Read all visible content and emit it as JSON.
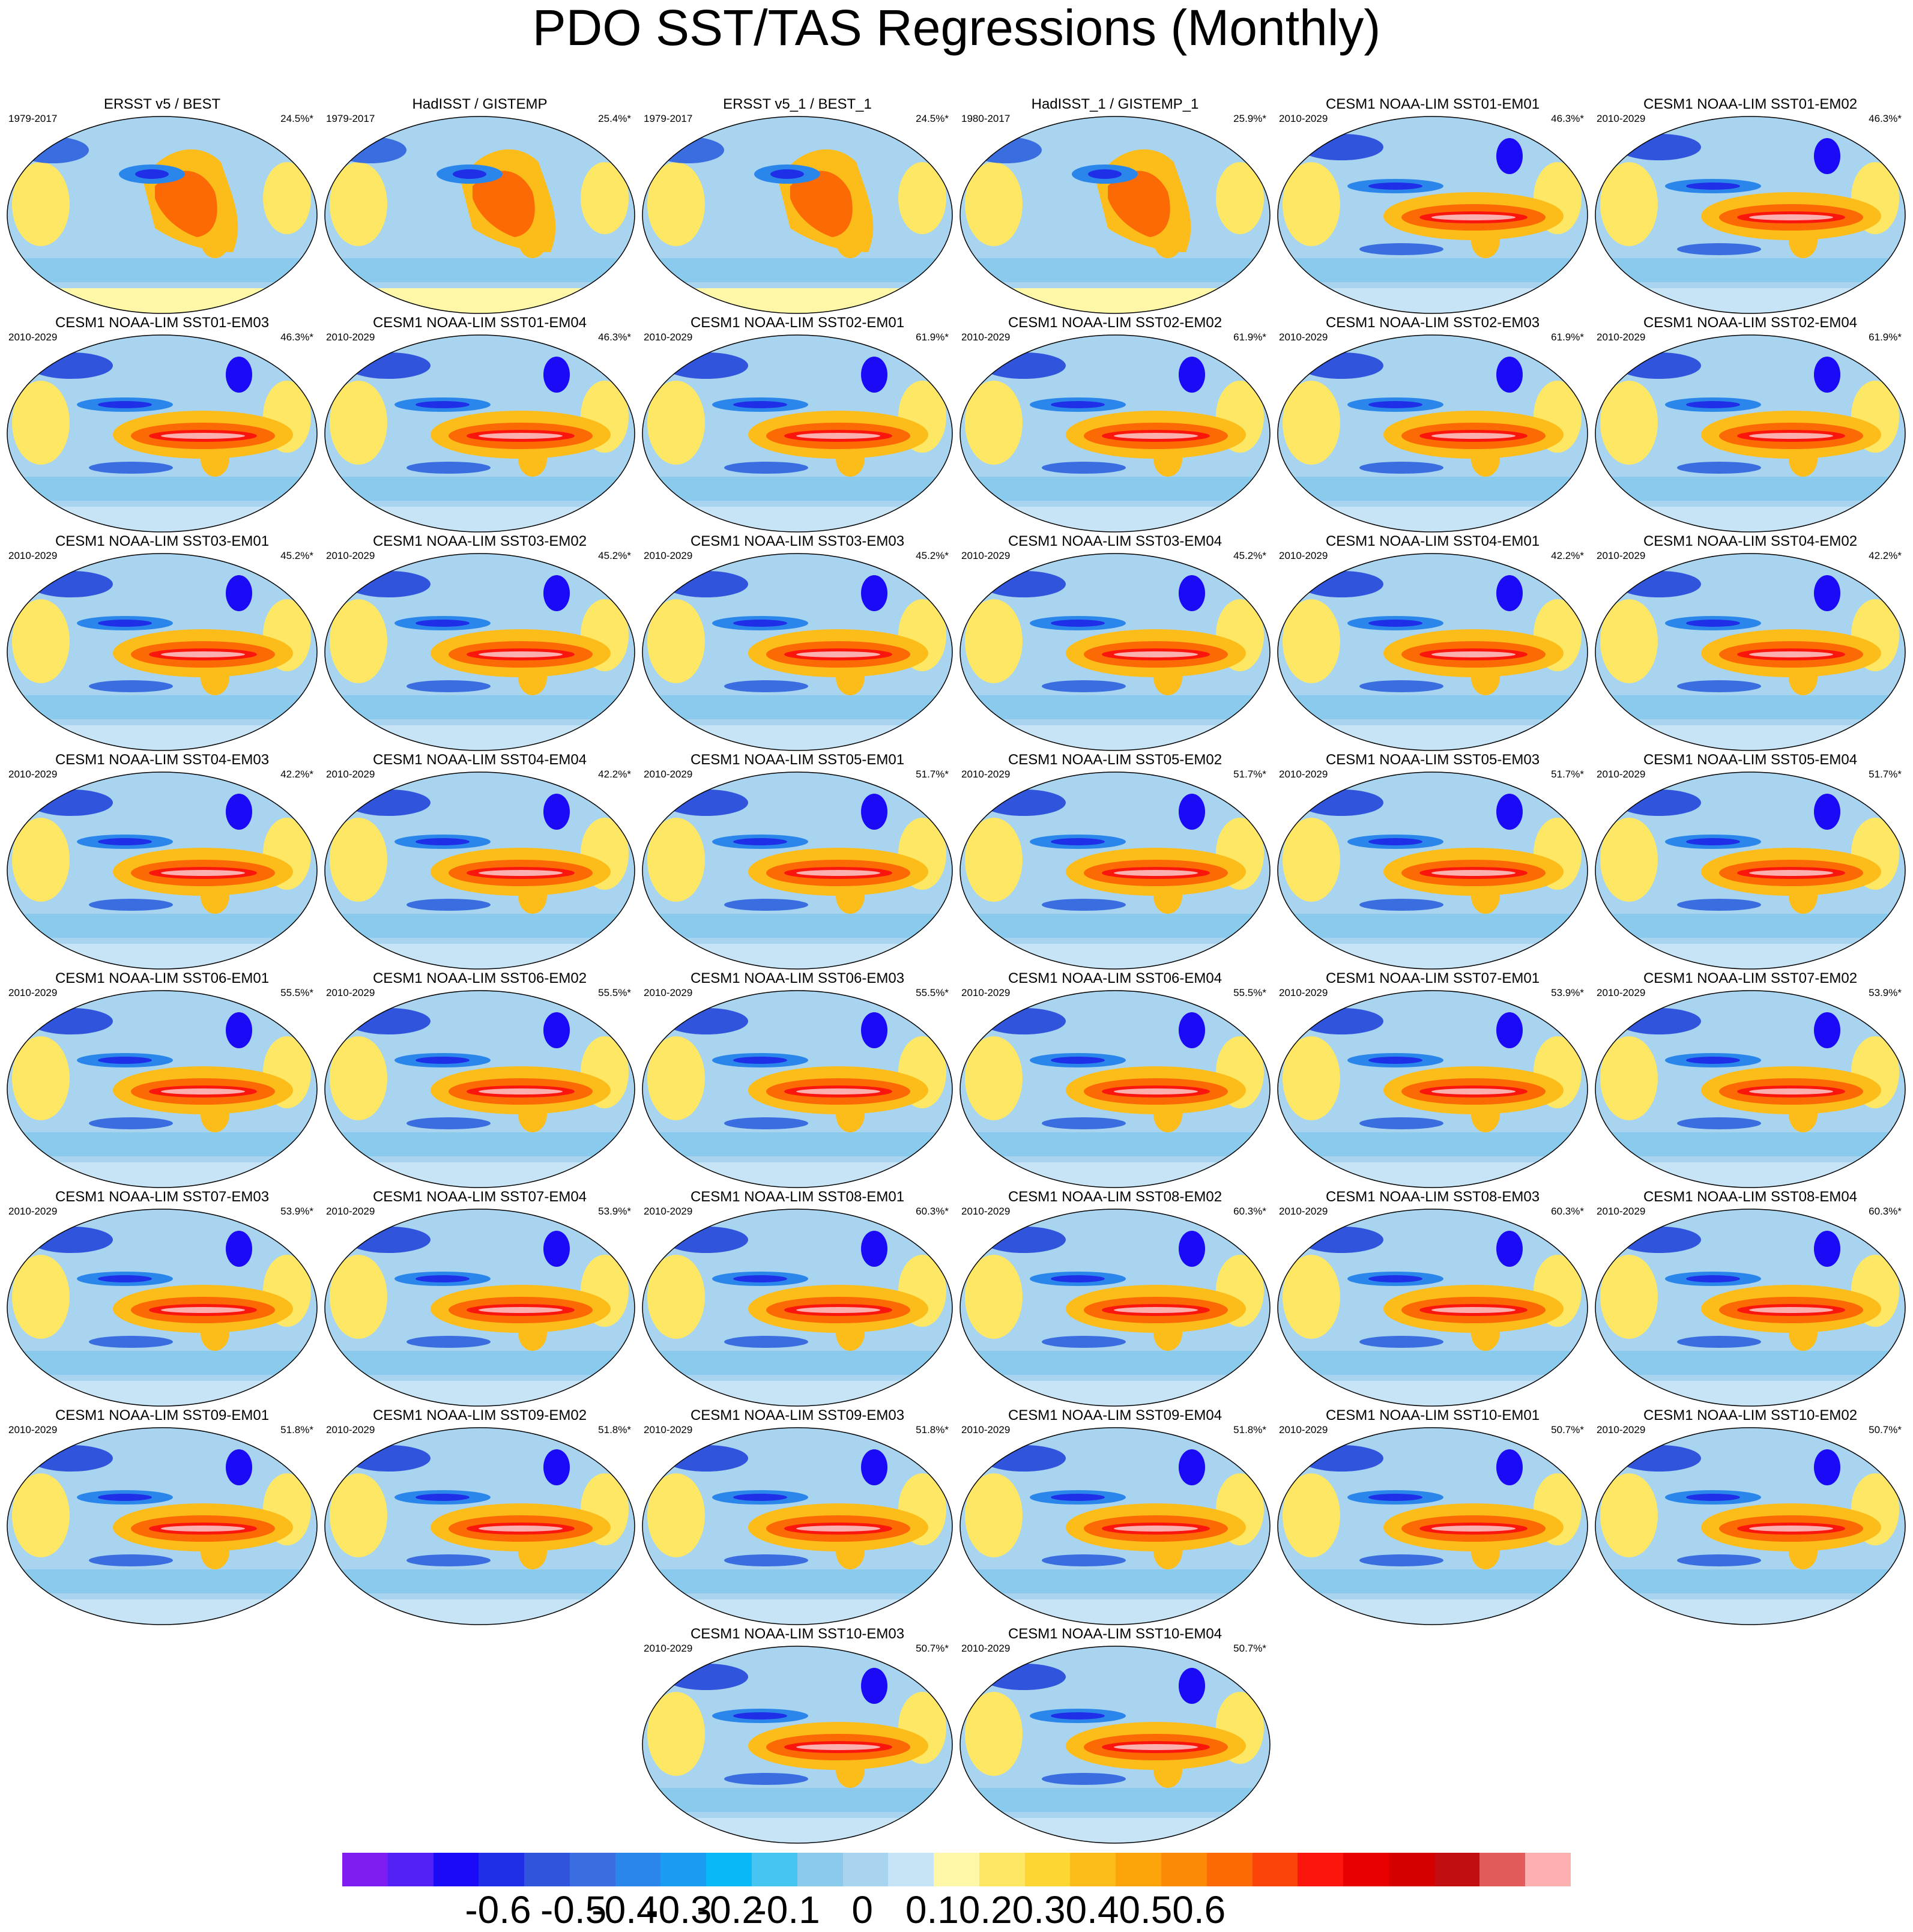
{
  "title": "PDO SST/TAS Regressions (Monthly)",
  "chart_data": {
    "type": "heatmap",
    "title": "PDO SST/TAS Regressions (Monthly)",
    "panels": [
      {
        "title": "ERSST v5 / BEST",
        "years": "1979-2017",
        "pct": "24.5%*",
        "style": "obs"
      },
      {
        "title": "HadISST / GISTEMP",
        "years": "1979-2017",
        "pct": "25.4%*",
        "style": "obs"
      },
      {
        "title": "ERSST v5_1 / BEST_1",
        "years": "1979-2017",
        "pct": "24.5%*",
        "style": "obs"
      },
      {
        "title": "HadISST_1 / GISTEMP_1",
        "years": "1980-2017",
        "pct": "25.9%*",
        "style": "obs"
      },
      {
        "title": "CESM1 NOAA-LIM SST01-EM01",
        "years": "2010-2029",
        "pct": "46.3%*",
        "style": "model"
      },
      {
        "title": "CESM1 NOAA-LIM SST01-EM02",
        "years": "2010-2029",
        "pct": "46.3%*",
        "style": "model"
      },
      {
        "title": "CESM1 NOAA-LIM SST01-EM03",
        "years": "2010-2029",
        "pct": "46.3%*",
        "style": "model"
      },
      {
        "title": "CESM1 NOAA-LIM SST01-EM04",
        "years": "2010-2029",
        "pct": "46.3%*",
        "style": "model"
      },
      {
        "title": "CESM1 NOAA-LIM SST02-EM01",
        "years": "2010-2029",
        "pct": "61.9%*",
        "style": "model"
      },
      {
        "title": "CESM1 NOAA-LIM SST02-EM02",
        "years": "2010-2029",
        "pct": "61.9%*",
        "style": "model"
      },
      {
        "title": "CESM1 NOAA-LIM SST02-EM03",
        "years": "2010-2029",
        "pct": "61.9%*",
        "style": "model"
      },
      {
        "title": "CESM1 NOAA-LIM SST02-EM04",
        "years": "2010-2029",
        "pct": "61.9%*",
        "style": "model"
      },
      {
        "title": "CESM1 NOAA-LIM SST03-EM01",
        "years": "2010-2029",
        "pct": "45.2%*",
        "style": "model"
      },
      {
        "title": "CESM1 NOAA-LIM SST03-EM02",
        "years": "2010-2029",
        "pct": "45.2%*",
        "style": "model"
      },
      {
        "title": "CESM1 NOAA-LIM SST03-EM03",
        "years": "2010-2029",
        "pct": "45.2%*",
        "style": "model"
      },
      {
        "title": "CESM1 NOAA-LIM SST03-EM04",
        "years": "2010-2029",
        "pct": "45.2%*",
        "style": "model"
      },
      {
        "title": "CESM1 NOAA-LIM SST04-EM01",
        "years": "2010-2029",
        "pct": "42.2%*",
        "style": "model"
      },
      {
        "title": "CESM1 NOAA-LIM SST04-EM02",
        "years": "2010-2029",
        "pct": "42.2%*",
        "style": "model"
      },
      {
        "title": "CESM1 NOAA-LIM SST04-EM03",
        "years": "2010-2029",
        "pct": "42.2%*",
        "style": "model"
      },
      {
        "title": "CESM1 NOAA-LIM SST04-EM04",
        "years": "2010-2029",
        "pct": "42.2%*",
        "style": "model"
      },
      {
        "title": "CESM1 NOAA-LIM SST05-EM01",
        "years": "2010-2029",
        "pct": "51.7%*",
        "style": "model"
      },
      {
        "title": "CESM1 NOAA-LIM SST05-EM02",
        "years": "2010-2029",
        "pct": "51.7%*",
        "style": "model"
      },
      {
        "title": "CESM1 NOAA-LIM SST05-EM03",
        "years": "2010-2029",
        "pct": "51.7%*",
        "style": "model"
      },
      {
        "title": "CESM1 NOAA-LIM SST05-EM04",
        "years": "2010-2029",
        "pct": "51.7%*",
        "style": "model"
      },
      {
        "title": "CESM1 NOAA-LIM SST06-EM01",
        "years": "2010-2029",
        "pct": "55.5%*",
        "style": "model"
      },
      {
        "title": "CESM1 NOAA-LIM SST06-EM02",
        "years": "2010-2029",
        "pct": "55.5%*",
        "style": "model"
      },
      {
        "title": "CESM1 NOAA-LIM SST06-EM03",
        "years": "2010-2029",
        "pct": "55.5%*",
        "style": "model"
      },
      {
        "title": "CESM1 NOAA-LIM SST06-EM04",
        "years": "2010-2029",
        "pct": "55.5%*",
        "style": "model"
      },
      {
        "title": "CESM1 NOAA-LIM SST07-EM01",
        "years": "2010-2029",
        "pct": "53.9%*",
        "style": "model"
      },
      {
        "title": "CESM1 NOAA-LIM SST07-EM02",
        "years": "2010-2029",
        "pct": "53.9%*",
        "style": "model"
      },
      {
        "title": "CESM1 NOAA-LIM SST07-EM03",
        "years": "2010-2029",
        "pct": "53.9%*",
        "style": "model"
      },
      {
        "title": "CESM1 NOAA-LIM SST07-EM04",
        "years": "2010-2029",
        "pct": "53.9%*",
        "style": "model"
      },
      {
        "title": "CESM1 NOAA-LIM SST08-EM01",
        "years": "2010-2029",
        "pct": "60.3%*",
        "style": "model"
      },
      {
        "title": "CESM1 NOAA-LIM SST08-EM02",
        "years": "2010-2029",
        "pct": "60.3%*",
        "style": "model"
      },
      {
        "title": "CESM1 NOAA-LIM SST08-EM03",
        "years": "2010-2029",
        "pct": "60.3%*",
        "style": "model"
      },
      {
        "title": "CESM1 NOAA-LIM SST08-EM04",
        "years": "2010-2029",
        "pct": "60.3%*",
        "style": "model"
      },
      {
        "title": "CESM1 NOAA-LIM SST09-EM01",
        "years": "2010-2029",
        "pct": "51.8%*",
        "style": "model"
      },
      {
        "title": "CESM1 NOAA-LIM SST09-EM02",
        "years": "2010-2029",
        "pct": "51.8%*",
        "style": "model"
      },
      {
        "title": "CESM1 NOAA-LIM SST09-EM03",
        "years": "2010-2029",
        "pct": "51.8%*",
        "style": "model"
      },
      {
        "title": "CESM1 NOAA-LIM SST09-EM04",
        "years": "2010-2029",
        "pct": "51.8%*",
        "style": "model"
      },
      {
        "title": "CESM1 NOAA-LIM SST10-EM01",
        "years": "2010-2029",
        "pct": "50.7%*",
        "style": "model"
      },
      {
        "title": "CESM1 NOAA-LIM SST10-EM02",
        "years": "2010-2029",
        "pct": "50.7%*",
        "style": "model"
      },
      {
        "title": "CESM1 NOAA-LIM SST10-EM03",
        "years": "2010-2029",
        "pct": "50.7%*",
        "style": "model"
      },
      {
        "title": "CESM1 NOAA-LIM SST10-EM04",
        "years": "2010-2029",
        "pct": "50.7%*",
        "style": "model"
      }
    ],
    "colorbar": {
      "colors": [
        "#7f1cf2",
        "#5320f5",
        "#1a0af5",
        "#1f2fe8",
        "#3154dd",
        "#3a6de0",
        "#2a86ea",
        "#1b9cf2",
        "#08b8f7",
        "#46c4f2",
        "#8acbed",
        "#a9d4ef",
        "#c6e4f5",
        "#fff7a8",
        "#fde764",
        "#fed633",
        "#fcbd1a",
        "#fca40a",
        "#fb8a05",
        "#fb6a04",
        "#fb4407",
        "#fb160d",
        "#e80000",
        "#d40000",
        "#c30e11",
        "#e25a5a",
        "#fdb0b0"
      ],
      "tick_labels": [
        "-0.6",
        "-0.5",
        "-0.4",
        "-0.3",
        "-0.2",
        "-0.1",
        "0",
        "0.1",
        "0.2",
        "0.3",
        "0.4",
        "0.5",
        "0.6"
      ]
    }
  }
}
